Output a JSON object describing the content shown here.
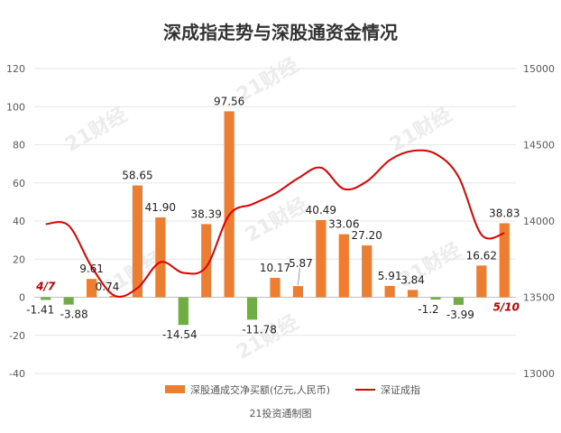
{
  "chart_data": {
    "type": "bar+line",
    "title": "深成指走势与深股通资金情况",
    "source": "21投资通制图",
    "watermark": "21财经",
    "left_axis": {
      "min": -40,
      "max": 120,
      "step": 20,
      "ticks": [
        "-40",
        "-20",
        "0",
        "20",
        "40",
        "60",
        "80",
        "100",
        "120"
      ]
    },
    "right_axis": {
      "min": 13000,
      "max": 15000,
      "step": 500,
      "ticks": [
        "13000",
        "13500",
        "14000",
        "14500",
        "15000"
      ]
    },
    "bar_series": {
      "name": "深股通成交净买额(亿元,人民币)",
      "positive_color": "#ED7D31",
      "negative_color": "#70AD47",
      "values": [
        -1.41,
        -3.88,
        9.61,
        0.74,
        58.65,
        41.9,
        -14.54,
        38.39,
        97.56,
        -11.78,
        10.17,
        5.87,
        40.49,
        33.06,
        27.2,
        5.91,
        3.84,
        -1.2,
        -3.99,
        16.62,
        38.83
      ],
      "labels": [
        "-1.41",
        "-3.88",
        "9.61",
        "0.74",
        "58.65",
        "41.90",
        "-14.54",
        "38.39",
        "97.56",
        "-11.78",
        "10.17",
        "5.87",
        "40.49",
        "33.06",
        "27.20",
        "5.91",
        "3.84",
        "-1.2",
        "-3.99",
        "16.62",
        "38.83"
      ]
    },
    "line_series": {
      "name": "深证成指",
      "color": "#E00000",
      "values": [
        13980,
        13970,
        13700,
        13510,
        13560,
        13730,
        13660,
        13700,
        14040,
        14110,
        14180,
        14280,
        14350,
        14210,
        14260,
        14400,
        14460,
        14440,
        14290,
        13910,
        13920
      ]
    },
    "date_labels": [
      {
        "index": 0,
        "text": "4/7"
      },
      {
        "index": 20,
        "text": "5/10"
      }
    ]
  }
}
